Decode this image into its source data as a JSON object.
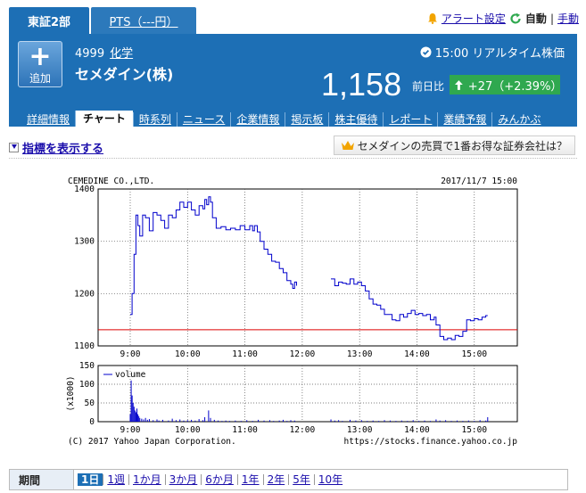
{
  "tabs": {
    "market": "東証2部",
    "pts": "PTS（---円）"
  },
  "toplinks": {
    "alert": "アラート設定",
    "auto": "自動",
    "manual": "手動"
  },
  "stock": {
    "code": "4999",
    "sector": "化学",
    "name": "セメダイン(株)",
    "add_label": "追加",
    "realtime": "15:00 リアルタイム株価",
    "price": "1,158",
    "zenjitsu": "前日比",
    "change": "+27（+2.39%）"
  },
  "subnav": [
    "詳細情報",
    "チャート",
    "時系列",
    "ニュース",
    "企業情報",
    "掲示板",
    "株主優待",
    "レポート",
    "業績予報",
    "みんかぶ"
  ],
  "indicator_link": "指標を表示する",
  "promo": "セメダインの売買で1番お得な証券会社は？",
  "chart_data": {
    "type": "line",
    "title_left": "CEMEDINE CO.,LTD.",
    "title_right": "2017/11/7 15:00",
    "x_ticks": [
      "9:00",
      "10:00",
      "11:00",
      "12:00",
      "13:00",
      "14:00",
      "15:00"
    ],
    "x_range_minutes": [
      0,
      390
    ],
    "price": {
      "ylim": [
        1100,
        1400
      ],
      "y_ticks": [
        "1400",
        "1300",
        "1200",
        "1100"
      ],
      "reference_line": 1131,
      "series": [
        {
          "segment": "morning",
          "points": [
            [
              0,
              1160
            ],
            [
              2,
              1200
            ],
            [
              4,
              1275
            ],
            [
              6,
              1350
            ],
            [
              8,
              1330
            ],
            [
              10,
              1310
            ],
            [
              13,
              1350
            ],
            [
              16,
              1345
            ],
            [
              20,
              1320
            ],
            [
              24,
              1355
            ],
            [
              28,
              1350
            ],
            [
              32,
              1340
            ],
            [
              36,
              1325
            ],
            [
              40,
              1350
            ],
            [
              44,
              1345
            ],
            [
              48,
              1360
            ],
            [
              52,
              1375
            ],
            [
              56,
              1365
            ],
            [
              60,
              1375
            ],
            [
              64,
              1360
            ],
            [
              68,
              1350
            ],
            [
              72,
              1368
            ],
            [
              76,
              1362
            ],
            [
              78,
              1380
            ],
            [
              80,
              1370
            ],
            [
              82,
              1385
            ],
            [
              84,
              1375
            ],
            [
              86,
              1345
            ],
            [
              90,
              1325
            ],
            [
              95,
              1328
            ],
            [
              100,
              1322
            ],
            [
              105,
              1325
            ],
            [
              110,
              1322
            ],
            [
              115,
              1330
            ],
            [
              120,
              1322
            ],
            [
              125,
              1330
            ],
            [
              128,
              1320
            ],
            [
              130,
              1330
            ],
            [
              133,
              1318
            ],
            [
              136,
              1300
            ],
            [
              140,
              1285
            ],
            [
              144,
              1275
            ],
            [
              148,
              1262
            ],
            [
              152,
              1260
            ],
            [
              156,
              1248
            ],
            [
              160,
              1240
            ],
            [
              164,
              1225
            ],
            [
              168,
              1218
            ],
            [
              170,
              1210
            ],
            [
              172,
              1222
            ],
            [
              174,
              1215
            ]
          ]
        },
        {
          "segment": "afternoon",
          "points": [
            [
              210,
              1228
            ],
            [
              214,
              1215
            ],
            [
              218,
              1222
            ],
            [
              222,
              1220
            ],
            [
              226,
              1218
            ],
            [
              230,
              1228
            ],
            [
              234,
              1218
            ],
            [
              238,
              1222
            ],
            [
              242,
              1215
            ],
            [
              246,
              1205
            ],
            [
              250,
              1190
            ],
            [
              254,
              1180
            ],
            [
              258,
              1178
            ],
            [
              262,
              1170
            ],
            [
              266,
              1160
            ],
            [
              270,
              1160
            ],
            [
              274,
              1150
            ],
            [
              278,
              1148
            ],
            [
              282,
              1160
            ],
            [
              286,
              1155
            ],
            [
              290,
              1162
            ],
            [
              294,
              1168
            ],
            [
              298,
              1160
            ],
            [
              302,
              1162
            ],
            [
              306,
              1158
            ],
            [
              310,
              1160
            ],
            [
              314,
              1150
            ],
            [
              318,
              1155
            ],
            [
              320,
              1140
            ],
            [
              324,
              1118
            ],
            [
              328,
              1112
            ],
            [
              332,
              1115
            ],
            [
              336,
              1112
            ],
            [
              340,
              1120
            ],
            [
              344,
              1118
            ],
            [
              348,
              1128
            ],
            [
              352,
              1150
            ],
            [
              356,
              1148
            ],
            [
              360,
              1152
            ],
            [
              364,
              1150
            ],
            [
              368,
              1155
            ],
            [
              372,
              1158
            ],
            [
              374,
              1158
            ]
          ]
        }
      ]
    },
    "volume": {
      "ylabel": "(x1000)",
      "legend": "volume",
      "ylim": [
        0,
        150
      ],
      "y_ticks": [
        "150",
        "100",
        "50",
        "0"
      ],
      "bars": [
        [
          0,
          20
        ],
        [
          1,
          110
        ],
        [
          2,
          70
        ],
        [
          3,
          50
        ],
        [
          4,
          40
        ],
        [
          5,
          30
        ],
        [
          6,
          25
        ],
        [
          7,
          35
        ],
        [
          8,
          20
        ],
        [
          9,
          15
        ],
        [
          10,
          10
        ],
        [
          12,
          8
        ],
        [
          14,
          6
        ],
        [
          16,
          10
        ],
        [
          18,
          5
        ],
        [
          20,
          7
        ],
        [
          24,
          4
        ],
        [
          28,
          6
        ],
        [
          30,
          3
        ],
        [
          34,
          5
        ],
        [
          40,
          3
        ],
        [
          44,
          8
        ],
        [
          48,
          4
        ],
        [
          52,
          6
        ],
        [
          56,
          3
        ],
        [
          60,
          4
        ],
        [
          64,
          5
        ],
        [
          68,
          3
        ],
        [
          72,
          7
        ],
        [
          76,
          4
        ],
        [
          78,
          12
        ],
        [
          82,
          30
        ],
        [
          84,
          10
        ],
        [
          88,
          5
        ],
        [
          92,
          3
        ],
        [
          96,
          2
        ],
        [
          100,
          3
        ],
        [
          104,
          2
        ],
        [
          110,
          3
        ],
        [
          116,
          2
        ],
        [
          122,
          4
        ],
        [
          128,
          2
        ],
        [
          134,
          5
        ],
        [
          140,
          3
        ],
        [
          146,
          4
        ],
        [
          150,
          2
        ],
        [
          156,
          3
        ],
        [
          160,
          5
        ],
        [
          164,
          2
        ],
        [
          168,
          4
        ],
        [
          172,
          3
        ],
        [
          210,
          6
        ],
        [
          214,
          3
        ],
        [
          218,
          4
        ],
        [
          222,
          2
        ],
        [
          230,
          5
        ],
        [
          236,
          3
        ],
        [
          242,
          4
        ],
        [
          248,
          2
        ],
        [
          254,
          3
        ],
        [
          260,
          2
        ],
        [
          266,
          4
        ],
        [
          272,
          3
        ],
        [
          278,
          2
        ],
        [
          284,
          3
        ],
        [
          290,
          2
        ],
        [
          296,
          4
        ],
        [
          302,
          2
        ],
        [
          308,
          3
        ],
        [
          314,
          2
        ],
        [
          320,
          6
        ],
        [
          324,
          3
        ],
        [
          330,
          4
        ],
        [
          336,
          2
        ],
        [
          342,
          3
        ],
        [
          348,
          2
        ],
        [
          354,
          3
        ],
        [
          360,
          2
        ],
        [
          366,
          4
        ],
        [
          372,
          3
        ],
        [
          374,
          12
        ]
      ]
    },
    "copyright": "(C) 2017 Yahoo Japan Corporation.",
    "source": "https://stocks.finance.yahoo.co.jp"
  },
  "period": {
    "title": "期間",
    "options": [
      "1日",
      "1週",
      "1か月",
      "3か月",
      "6か月",
      "1年",
      "2年",
      "5年",
      "10年"
    ],
    "selected": "1日"
  },
  "colors": {
    "brand_blue": "#1d6fb5",
    "up_green": "#2fa84f",
    "line_blue": "#0000cc",
    "ref_red": "#dd0000"
  }
}
